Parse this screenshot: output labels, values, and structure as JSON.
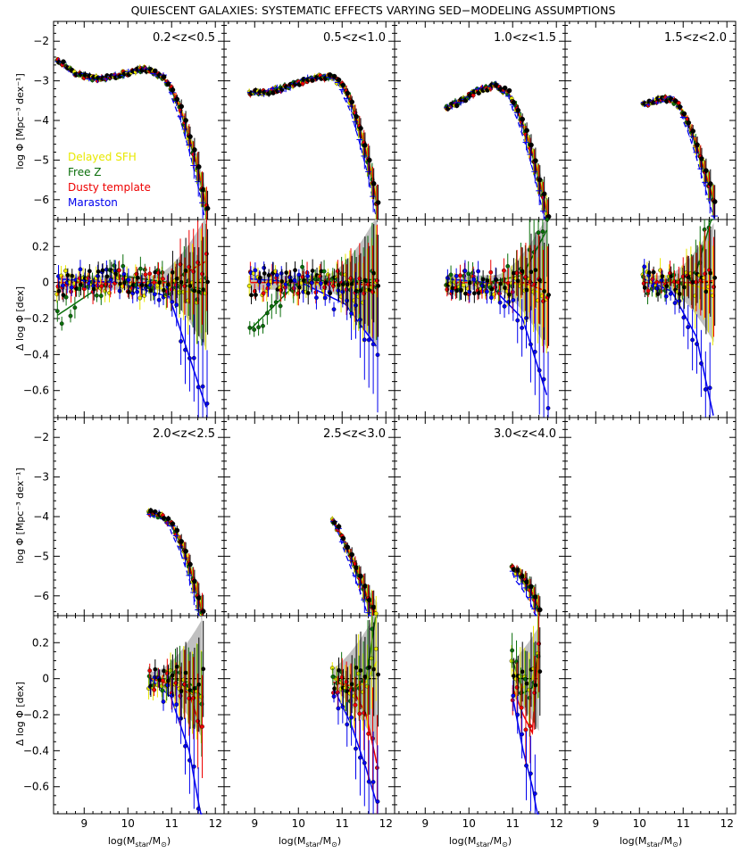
{
  "title": "QUIESCENT GALAXIES: SYSTEMATIC EFFECTS VARYING SED−MODELING ASSUMPTIONS",
  "colors": {
    "Delayed SFH": "#e8e800",
    "Free Z": "#0a6e0a",
    "Dusty template": "#ee0000",
    "Maraston": "#0000ee",
    "reference": "#000000",
    "band": "#c0c0c0"
  },
  "legend": {
    "placement": "lower-left of top-left panel",
    "entries": [
      "Delayed SFH",
      "Free Z",
      "Dusty template",
      "Maraston"
    ]
  },
  "axes": {
    "xlabel": "log(M",
    "xlabel_sub": "star",
    "xlabel_tail": "/M",
    "xlabel_sun": "⊙",
    "xlabel_end": ")",
    "x_ticks": [
      "9",
      "10",
      "11",
      "12"
    ],
    "xlim": [
      8.3,
      12.2
    ],
    "ylabel_top": "log Φ [Mpc⁻³ dex⁻¹]",
    "ylabel_bottom": "Δ log Φ [dex]",
    "ylim_top": [
      -6.5,
      -1.5
    ],
    "ylim_bottom": [
      -0.75,
      0.35
    ],
    "y_ticks_top": [
      "−2",
      "−3",
      "−4",
      "−5",
      "−6"
    ],
    "y_ticks_bottom": [
      "0.2",
      "0",
      "−0.2",
      "−0.4",
      "−0.6"
    ]
  },
  "panels": [
    {
      "label": "0.2<z<0.5",
      "mass_range": [
        8.3,
        11.8
      ]
    },
    {
      "label": "0.5<z<1.0",
      "mass_range": [
        8.9,
        11.8
      ]
    },
    {
      "label": "1.0<z<1.5",
      "mass_range": [
        9.5,
        11.8
      ]
    },
    {
      "label": "1.5<z<2.0",
      "mass_range": [
        10.1,
        11.7
      ]
    },
    {
      "label": "2.0<z<2.5",
      "mass_range": [
        10.5,
        11.7
      ]
    },
    {
      "label": "2.5<z<3.0",
      "mass_range": [
        10.8,
        11.8
      ]
    },
    {
      "label": "3.0<z<4.0",
      "mass_range": [
        11.0,
        11.6
      ]
    },
    {
      "label": "",
      "mass_range": null
    }
  ],
  "chart_data": {
    "type": "scatter",
    "title": "QUIESCENT GALAXIES: SYSTEMATIC EFFECTS VARYING SED−MODELING ASSUMPTIONS",
    "xlabel": "log(Mstar/M⊙)",
    "ylabel_top": "log Φ [Mpc⁻³ dex⁻¹]",
    "ylabel_bottom": "Δ log Φ [dex]",
    "xlim": [
      8.3,
      12.2
    ],
    "ylim_top": [
      -6.5,
      -1.5
    ],
    "ylim_bottom": [
      -0.75,
      0.35
    ],
    "series_names": [
      "Delayed SFH",
      "Free Z",
      "Dusty template",
      "Maraston"
    ],
    "mass_function": [
      {
        "z": "0.2<z<0.5",
        "x": [
          8.4,
          8.8,
          9.2,
          9.6,
          10.0,
          10.4,
          10.8,
          11.0,
          11.2,
          11.4,
          11.6,
          11.8
        ],
        "y": [
          -2.5,
          -2.8,
          -2.95,
          -2.9,
          -2.8,
          -2.7,
          -2.9,
          -3.2,
          -3.7,
          -4.4,
          -5.2,
          -6.2
        ]
      },
      {
        "z": "0.5<z<1.0",
        "x": [
          8.9,
          9.2,
          9.6,
          10.0,
          10.4,
          10.8,
          11.0,
          11.2,
          11.4,
          11.6,
          11.8
        ],
        "y": [
          -3.3,
          -3.3,
          -3.2,
          -3.05,
          -2.9,
          -2.9,
          -3.1,
          -3.5,
          -4.2,
          -5.0,
          -6.1
        ]
      },
      {
        "z": "1.0<z<1.5",
        "x": [
          9.5,
          9.8,
          10.2,
          10.6,
          10.9,
          11.1,
          11.3,
          11.5,
          11.7,
          11.8
        ],
        "y": [
          -3.7,
          -3.5,
          -3.25,
          -3.1,
          -3.3,
          -3.7,
          -4.3,
          -5.0,
          -5.9,
          -6.4
        ]
      },
      {
        "z": "1.5<z<2.0",
        "x": [
          10.1,
          10.4,
          10.7,
          10.9,
          11.1,
          11.3,
          11.5,
          11.7
        ],
        "y": [
          -3.6,
          -3.5,
          -3.45,
          -3.6,
          -4.0,
          -4.6,
          -5.3,
          -6.0
        ]
      },
      {
        "z": "2.0<z<2.5",
        "x": [
          10.5,
          10.8,
          11.0,
          11.2,
          11.4,
          11.6,
          11.7
        ],
        "y": [
          -3.9,
          -4.0,
          -4.2,
          -4.6,
          -5.2,
          -6.0,
          -6.4
        ]
      },
      {
        "z": "2.5<z<3.0",
        "x": [
          10.8,
          11.0,
          11.2,
          11.4,
          11.6,
          11.8
        ],
        "y": [
          -4.1,
          -4.5,
          -5.0,
          -5.5,
          -6.1,
          -6.5
        ]
      },
      {
        "z": "3.0<z<4.0",
        "x": [
          11.0,
          11.2,
          11.4,
          11.6
        ],
        "y": [
          -5.3,
          -5.5,
          -5.8,
          -6.3
        ]
      },
      {
        "z": "",
        "x": [],
        "y": []
      }
    ],
    "delta_fits": [
      {
        "z": "0.2<z<0.5",
        "Delayed SFH": [
          0.0,
          0.0,
          -0.04,
          -0.06
        ],
        "Free Z": [
          -0.18,
          0.04,
          0.0,
          -0.04
        ],
        "Dusty template": [
          0.0,
          0.0,
          0.0,
          0.12
        ],
        "Maraston": [
          0.02,
          0.0,
          -0.08,
          -0.7
        ]
      },
      {
        "z": "0.5<z<1.0",
        "Delayed SFH": [
          0.0,
          0.0,
          -0.02,
          -0.06
        ],
        "Free Z": [
          -0.26,
          0.02,
          0.0,
          0.02
        ],
        "Dusty template": [
          0.0,
          0.0,
          0.0,
          -0.02
        ],
        "Maraston": [
          0.02,
          0.0,
          -0.12,
          -0.36
        ]
      },
      {
        "z": "1.0<z<1.5",
        "Delayed SFH": [
          0.0,
          0.0,
          -0.01,
          -0.08
        ],
        "Free Z": [
          0.0,
          0.0,
          0.04,
          0.3
        ],
        "Dusty template": [
          0.0,
          0.0,
          0.0,
          -0.05
        ],
        "Maraston": [
          0.02,
          0.0,
          -0.2,
          -0.64
        ]
      },
      {
        "z": "1.5<z<2.0",
        "Delayed SFH": [
          0.0,
          0.0,
          -0.02,
          -0.05
        ],
        "Free Z": [
          0.0,
          0.0,
          0.06,
          0.4
        ],
        "Dusty template": [
          0.0,
          0.0,
          0.0,
          0.01
        ],
        "Maraston": [
          0.02,
          -0.05,
          -0.3,
          -0.75
        ]
      },
      {
        "z": "2.0<z<2.5",
        "Delayed SFH": [
          0.0,
          -0.02,
          -0.06,
          -0.15
        ],
        "Free Z": [
          0.0,
          0.0,
          -0.02,
          -0.1
        ],
        "Dusty template": [
          0.0,
          -0.03,
          -0.08,
          -0.3
        ],
        "Maraston": [
          0.0,
          -0.1,
          -0.4,
          -0.8
        ]
      },
      {
        "z": "2.5<z<3.0",
        "Delayed SFH": [
          0.0,
          -0.06,
          -0.02,
          0.1
        ],
        "Free Z": [
          0.02,
          -0.06,
          0.0,
          0.4
        ],
        "Dusty template": [
          -0.02,
          -0.04,
          -0.2,
          -0.48
        ],
        "Maraston": [
          -0.05,
          -0.25,
          -0.5,
          -0.7
        ]
      },
      {
        "z": "3.0<z<4.0",
        "Delayed SFH": [
          0.05,
          -0.05,
          0.0,
          0.15
        ],
        "Free Z": [
          0.1,
          -0.08,
          -0.05,
          0.15
        ],
        "Dusty template": [
          -0.05,
          -0.2,
          -0.3,
          0.2
        ],
        "Maraston": [
          -0.1,
          -0.4,
          -0.6,
          -0.8
        ]
      },
      {
        "z": "",
        "Delayed SFH": [],
        "Free Z": [],
        "Dusty template": [],
        "Maraston": []
      }
    ]
  }
}
